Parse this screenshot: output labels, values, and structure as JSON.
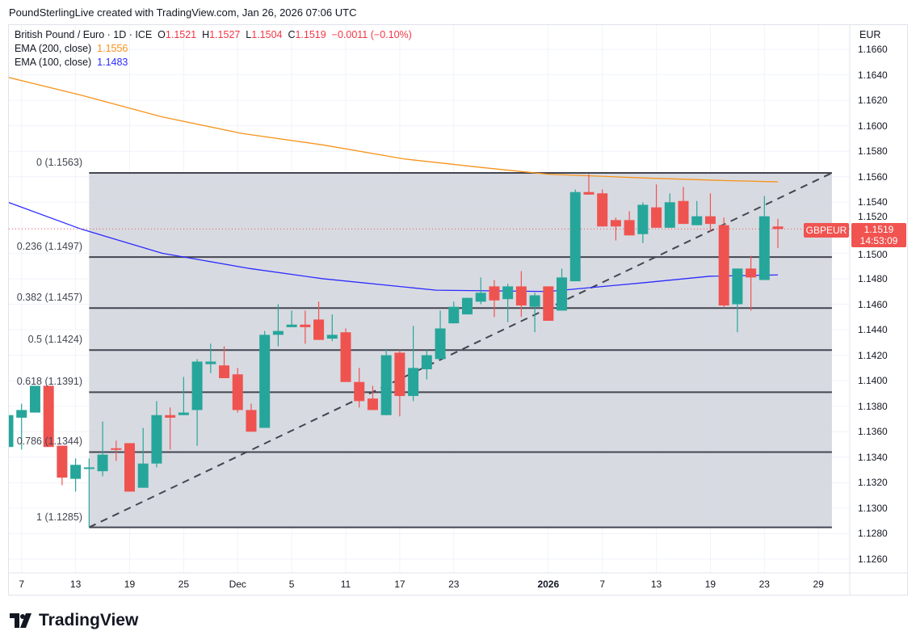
{
  "credit": "PoundSterlingLive created with TradingView.com, Jan 26, 2026 07:06 UTC",
  "legend": {
    "symbol": "British Pound / Euro · 1D · ICE",
    "o_label": "O",
    "o": "1.1521",
    "h_label": "H",
    "h": "1.1527",
    "l_label": "L",
    "l": "1.1504",
    "c_label": "C",
    "c": "1.1519",
    "change": "−0.0011 (−0.10%)",
    "ema200_label": "EMA (200, close)",
    "ema200": "1.1556",
    "ema100_label": "EMA (100, close)",
    "ema100": "1.1483"
  },
  "currency": "EUR",
  "symbol_tag": "GBPEUR",
  "last_price": "1.1519",
  "countdown": "14:53:09",
  "logo_text": "TradingView",
  "colors": {
    "up": "#26a69a",
    "down": "#ef5350",
    "ema200": "#f7931a",
    "ema100": "#2b2bff",
    "fib": "#434651"
  },
  "fib_levels": [
    {
      "label": "0 (1.1563)",
      "price": 1.1563
    },
    {
      "label": "0.236 (1.1497)",
      "price": 1.1497
    },
    {
      "label": "0.382 (1.1457)",
      "price": 1.1457
    },
    {
      "label": "0.5 (1.1424)",
      "price": 1.1424
    },
    {
      "label": "0.618 (1.1391)",
      "price": 1.1391
    },
    {
      "label": "0.786 (1.1344)",
      "price": 1.1344
    },
    {
      "label": "1 (1.1285)",
      "price": 1.1285
    }
  ],
  "price_ticks": [
    "1.1660",
    "1.1640",
    "1.1620",
    "1.1600",
    "1.1580",
    "1.1560",
    "1.1540",
    "1.1520",
    "1.1500",
    "1.1480",
    "1.1460",
    "1.1440",
    "1.1420",
    "1.1400",
    "1.1380",
    "1.1360",
    "1.1340",
    "1.1320",
    "1.1300",
    "1.1280",
    "1.1260"
  ],
  "time_ticks": [
    {
      "label": "7",
      "bar": 1
    },
    {
      "label": "13",
      "bar": 5
    },
    {
      "label": "19",
      "bar": 9
    },
    {
      "label": "25",
      "bar": 13
    },
    {
      "label": "Dec",
      "bar": 17
    },
    {
      "label": "5",
      "bar": 21
    },
    {
      "label": "11",
      "bar": 25
    },
    {
      "label": "17",
      "bar": 29
    },
    {
      "label": "23",
      "bar": 33
    },
    {
      "label": "2026",
      "bar": 40,
      "bold": true
    },
    {
      "label": "7",
      "bar": 44
    },
    {
      "label": "13",
      "bar": 48
    },
    {
      "label": "19",
      "bar": 52
    },
    {
      "label": "23",
      "bar": 56
    },
    {
      "label": "29",
      "bar": 60
    }
  ],
  "chart_data": {
    "type": "candlestick",
    "ylim": [
      1.125,
      1.1675
    ],
    "candles": [
      [
        1.1348,
        1.1373,
        1.1348,
        1.1373
      ],
      [
        1.1371,
        1.1382,
        1.1346,
        1.1377
      ],
      [
        1.1375,
        1.1396,
        1.1375,
        1.1396
      ],
      [
        1.1396,
        1.1396,
        1.1348,
        1.1348
      ],
      [
        1.1349,
        1.1349,
        1.1318,
        1.1324
      ],
      [
        1.1323,
        1.1339,
        1.1313,
        1.1334
      ],
      [
        1.1331,
        1.1339,
        1.1285,
        1.1332
      ],
      [
        1.1329,
        1.1368,
        1.1325,
        1.1342
      ],
      [
        1.1347,
        1.1353,
        1.1337,
        1.1346
      ],
      [
        1.1351,
        1.1351,
        1.1313,
        1.1313
      ],
      [
        1.1316,
        1.1363,
        1.1316,
        1.1335
      ],
      [
        1.1335,
        1.1384,
        1.1332,
        1.1373
      ],
      [
        1.1373,
        1.1379,
        1.1346,
        1.1371
      ],
      [
        1.1373,
        1.1403,
        1.1373,
        1.1375
      ],
      [
        1.1377,
        1.1417,
        1.1349,
        1.1415
      ],
      [
        1.1413,
        1.1429,
        1.1406,
        1.1415
      ],
      [
        1.1412,
        1.1427,
        1.1402,
        1.1402
      ],
      [
        1.1405,
        1.141,
        1.1375,
        1.1377
      ],
      [
        1.1377,
        1.1382,
        1.136,
        1.136
      ],
      [
        1.1363,
        1.1439,
        1.1363,
        1.1436
      ],
      [
        1.1436,
        1.146,
        1.1427,
        1.1439
      ],
      [
        1.1442,
        1.1455,
        1.1442,
        1.1444
      ],
      [
        1.1444,
        1.1455,
        1.1429,
        1.1442
      ],
      [
        1.1448,
        1.1462,
        1.1432,
        1.1432
      ],
      [
        1.1433,
        1.1452,
        1.1431,
        1.1436
      ],
      [
        1.1438,
        1.1441,
        1.1399,
        1.1399
      ],
      [
        1.1399,
        1.141,
        1.1379,
        1.1384
      ],
      [
        1.1386,
        1.1396,
        1.1377,
        1.1377
      ],
      [
        1.1373,
        1.1425,
        1.1373,
        1.142
      ],
      [
        1.1422,
        1.1424,
        1.1372,
        1.1388
      ],
      [
        1.1388,
        1.1443,
        1.1384,
        1.141
      ],
      [
        1.1409,
        1.1424,
        1.1401,
        1.142
      ],
      [
        1.1417,
        1.1455,
        1.1417,
        1.1441
      ],
      [
        1.1445,
        1.1462,
        1.1445,
        1.1458
      ],
      [
        1.1452,
        1.1465,
        1.1452,
        1.1465
      ],
      [
        1.1462,
        1.1481,
        1.146,
        1.1469
      ],
      [
        1.1474,
        1.1479,
        1.145,
        1.1463
      ],
      [
        1.1464,
        1.1476,
        1.1446,
        1.1474
      ],
      [
        1.1474,
        1.1486,
        1.145,
        1.1459
      ],
      [
        1.1458,
        1.1469,
        1.1438,
        1.1467
      ],
      [
        1.1474,
        1.1474,
        1.1447,
        1.1447
      ],
      [
        1.1455,
        1.1488,
        1.1455,
        1.1481
      ],
      [
        1.1478,
        1.155,
        1.1478,
        1.1548
      ],
      [
        1.1548,
        1.1562,
        1.1546,
        1.1546
      ],
      [
        1.1547,
        1.155,
        1.1521,
        1.1521
      ],
      [
        1.1526,
        1.1528,
        1.151,
        1.1521
      ],
      [
        1.1526,
        1.1533,
        1.1514,
        1.1514
      ],
      [
        1.1515,
        1.154,
        1.1508,
        1.1538
      ],
      [
        1.1536,
        1.1554,
        1.152,
        1.152
      ],
      [
        1.152,
        1.1547,
        1.152,
        1.154
      ],
      [
        1.1541,
        1.1552,
        1.1523,
        1.1523
      ],
      [
        1.1522,
        1.1541,
        1.1522,
        1.1529
      ],
      [
        1.1529,
        1.1547,
        1.1517,
        1.1523
      ],
      [
        1.1522,
        1.1528,
        1.1457,
        1.1459
      ],
      [
        1.146,
        1.1488,
        1.1438,
        1.1488
      ],
      [
        1.1488,
        1.1498,
        1.1455,
        1.1481
      ],
      [
        1.1479,
        1.1545,
        1.1479,
        1.1529
      ],
      [
        1.1521,
        1.1527,
        1.1504,
        1.1519
      ]
    ],
    "ema200": [
      [
        0,
        1.1638
      ],
      [
        5.4,
        1.1624
      ],
      [
        11.4,
        1.1607
      ],
      [
        17.3,
        1.1594
      ],
      [
        23.3,
        1.1585
      ],
      [
        29.3,
        1.1574
      ],
      [
        35.3,
        1.1567
      ],
      [
        40,
        1.1562
      ],
      [
        47.2,
        1.1559
      ],
      [
        53.2,
        1.1557
      ],
      [
        57,
        1.1556
      ]
    ],
    "ema100": [
      [
        0,
        1.154
      ],
      [
        5.4,
        1.1519
      ],
      [
        11.4,
        1.15
      ],
      [
        17.9,
        1.1488
      ],
      [
        23.3,
        1.148
      ],
      [
        31.7,
        1.1471
      ],
      [
        40,
        1.147
      ],
      [
        47.2,
        1.1477
      ],
      [
        52,
        1.1482
      ],
      [
        57,
        1.1483
      ]
    ],
    "fib_range": {
      "from_bar": 6,
      "to_bar": 61,
      "high": 1.1563,
      "low": 1.1285
    },
    "trendline": [
      [
        6,
        1.1285
      ],
      [
        61,
        1.1563
      ]
    ]
  }
}
